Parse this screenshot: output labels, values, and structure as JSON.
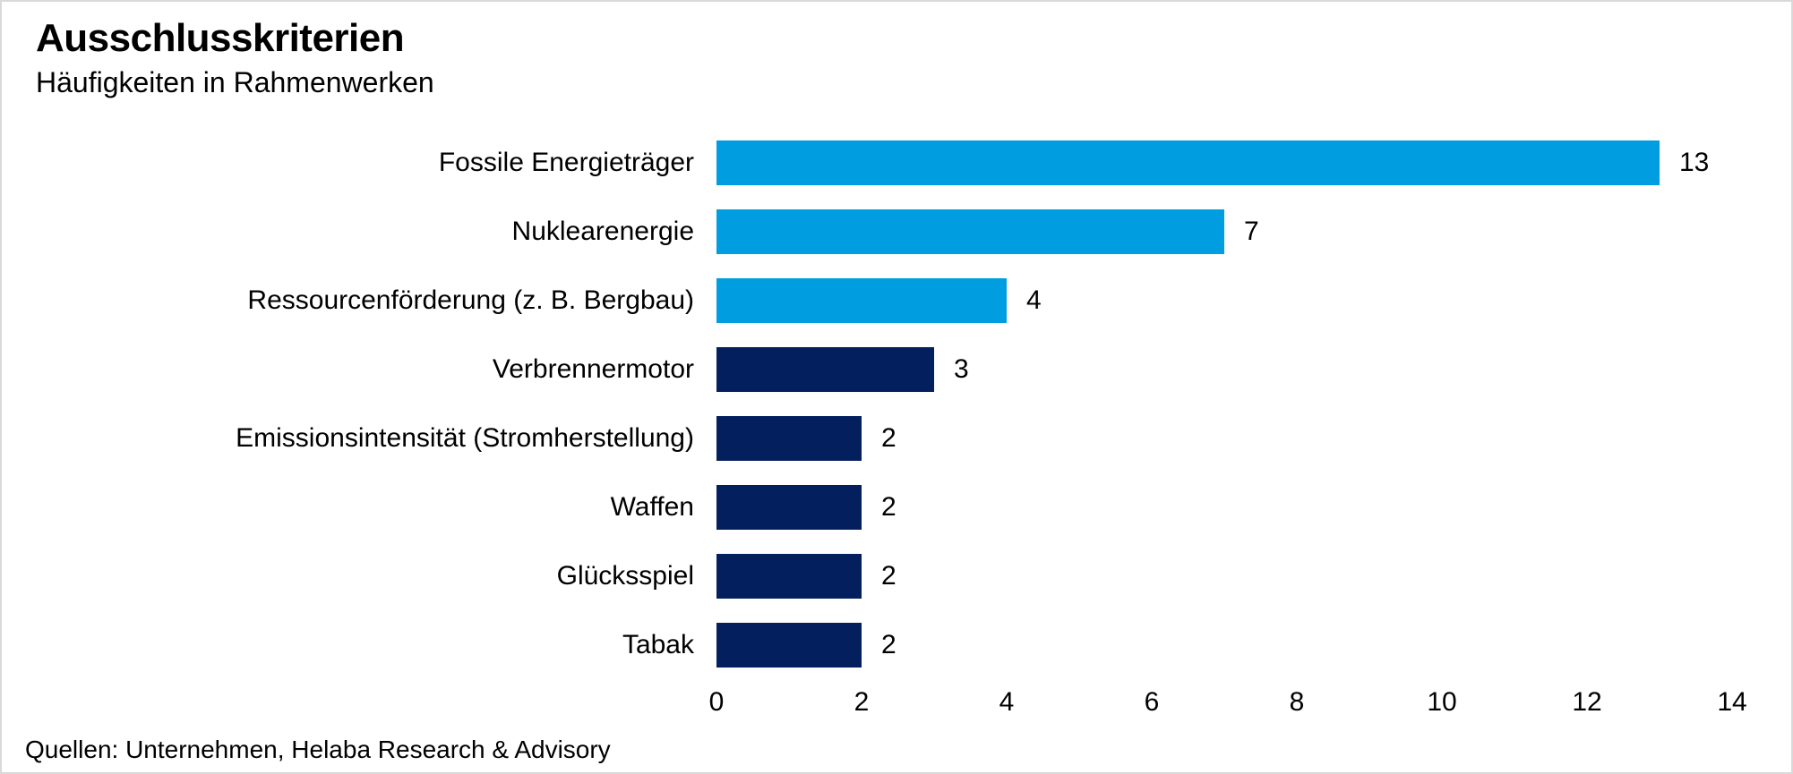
{
  "header": {
    "title": "Ausschlusskriterien",
    "subtitle": "Häufigkeiten in Rahmenwerken"
  },
  "footer": {
    "source": "Quellen: Unternehmen, Helaba Research & Advisory"
  },
  "colors": {
    "light_blue": "#009EE0",
    "dark_blue": "#041F5E",
    "frame_border": "#D9D9D9",
    "background": "#FFFFFF",
    "text": "#000000"
  },
  "chart_data": {
    "type": "bar",
    "orientation": "horizontal",
    "title": "Ausschlusskriterien",
    "subtitle": "Häufigkeiten in Rahmenwerken",
    "categories": [
      "Fossile Energieträger",
      "Nuklearenergie",
      "Ressourcenförderung (z. B. Bergbau)",
      "Verbrennermotor",
      "Emissionsintensität (Stromherstellung)",
      "Waffen",
      "Glücksspiel",
      "Tabak"
    ],
    "values": [
      13,
      7,
      4,
      3,
      2,
      2,
      2,
      2
    ],
    "bar_colors": [
      "#009EE0",
      "#009EE0",
      "#009EE0",
      "#041F5E",
      "#041F5E",
      "#041F5E",
      "#041F5E",
      "#041F5E"
    ],
    "value_labels_shown": true,
    "xlabel": "",
    "ylabel": "",
    "xlim": [
      0,
      14
    ],
    "xticks": [
      0,
      2,
      4,
      6,
      8,
      10,
      12,
      14
    ],
    "grid": false,
    "axis_lines": false,
    "legend": "none",
    "source": "Quellen: Unternehmen, Helaba Research & Advisory"
  }
}
